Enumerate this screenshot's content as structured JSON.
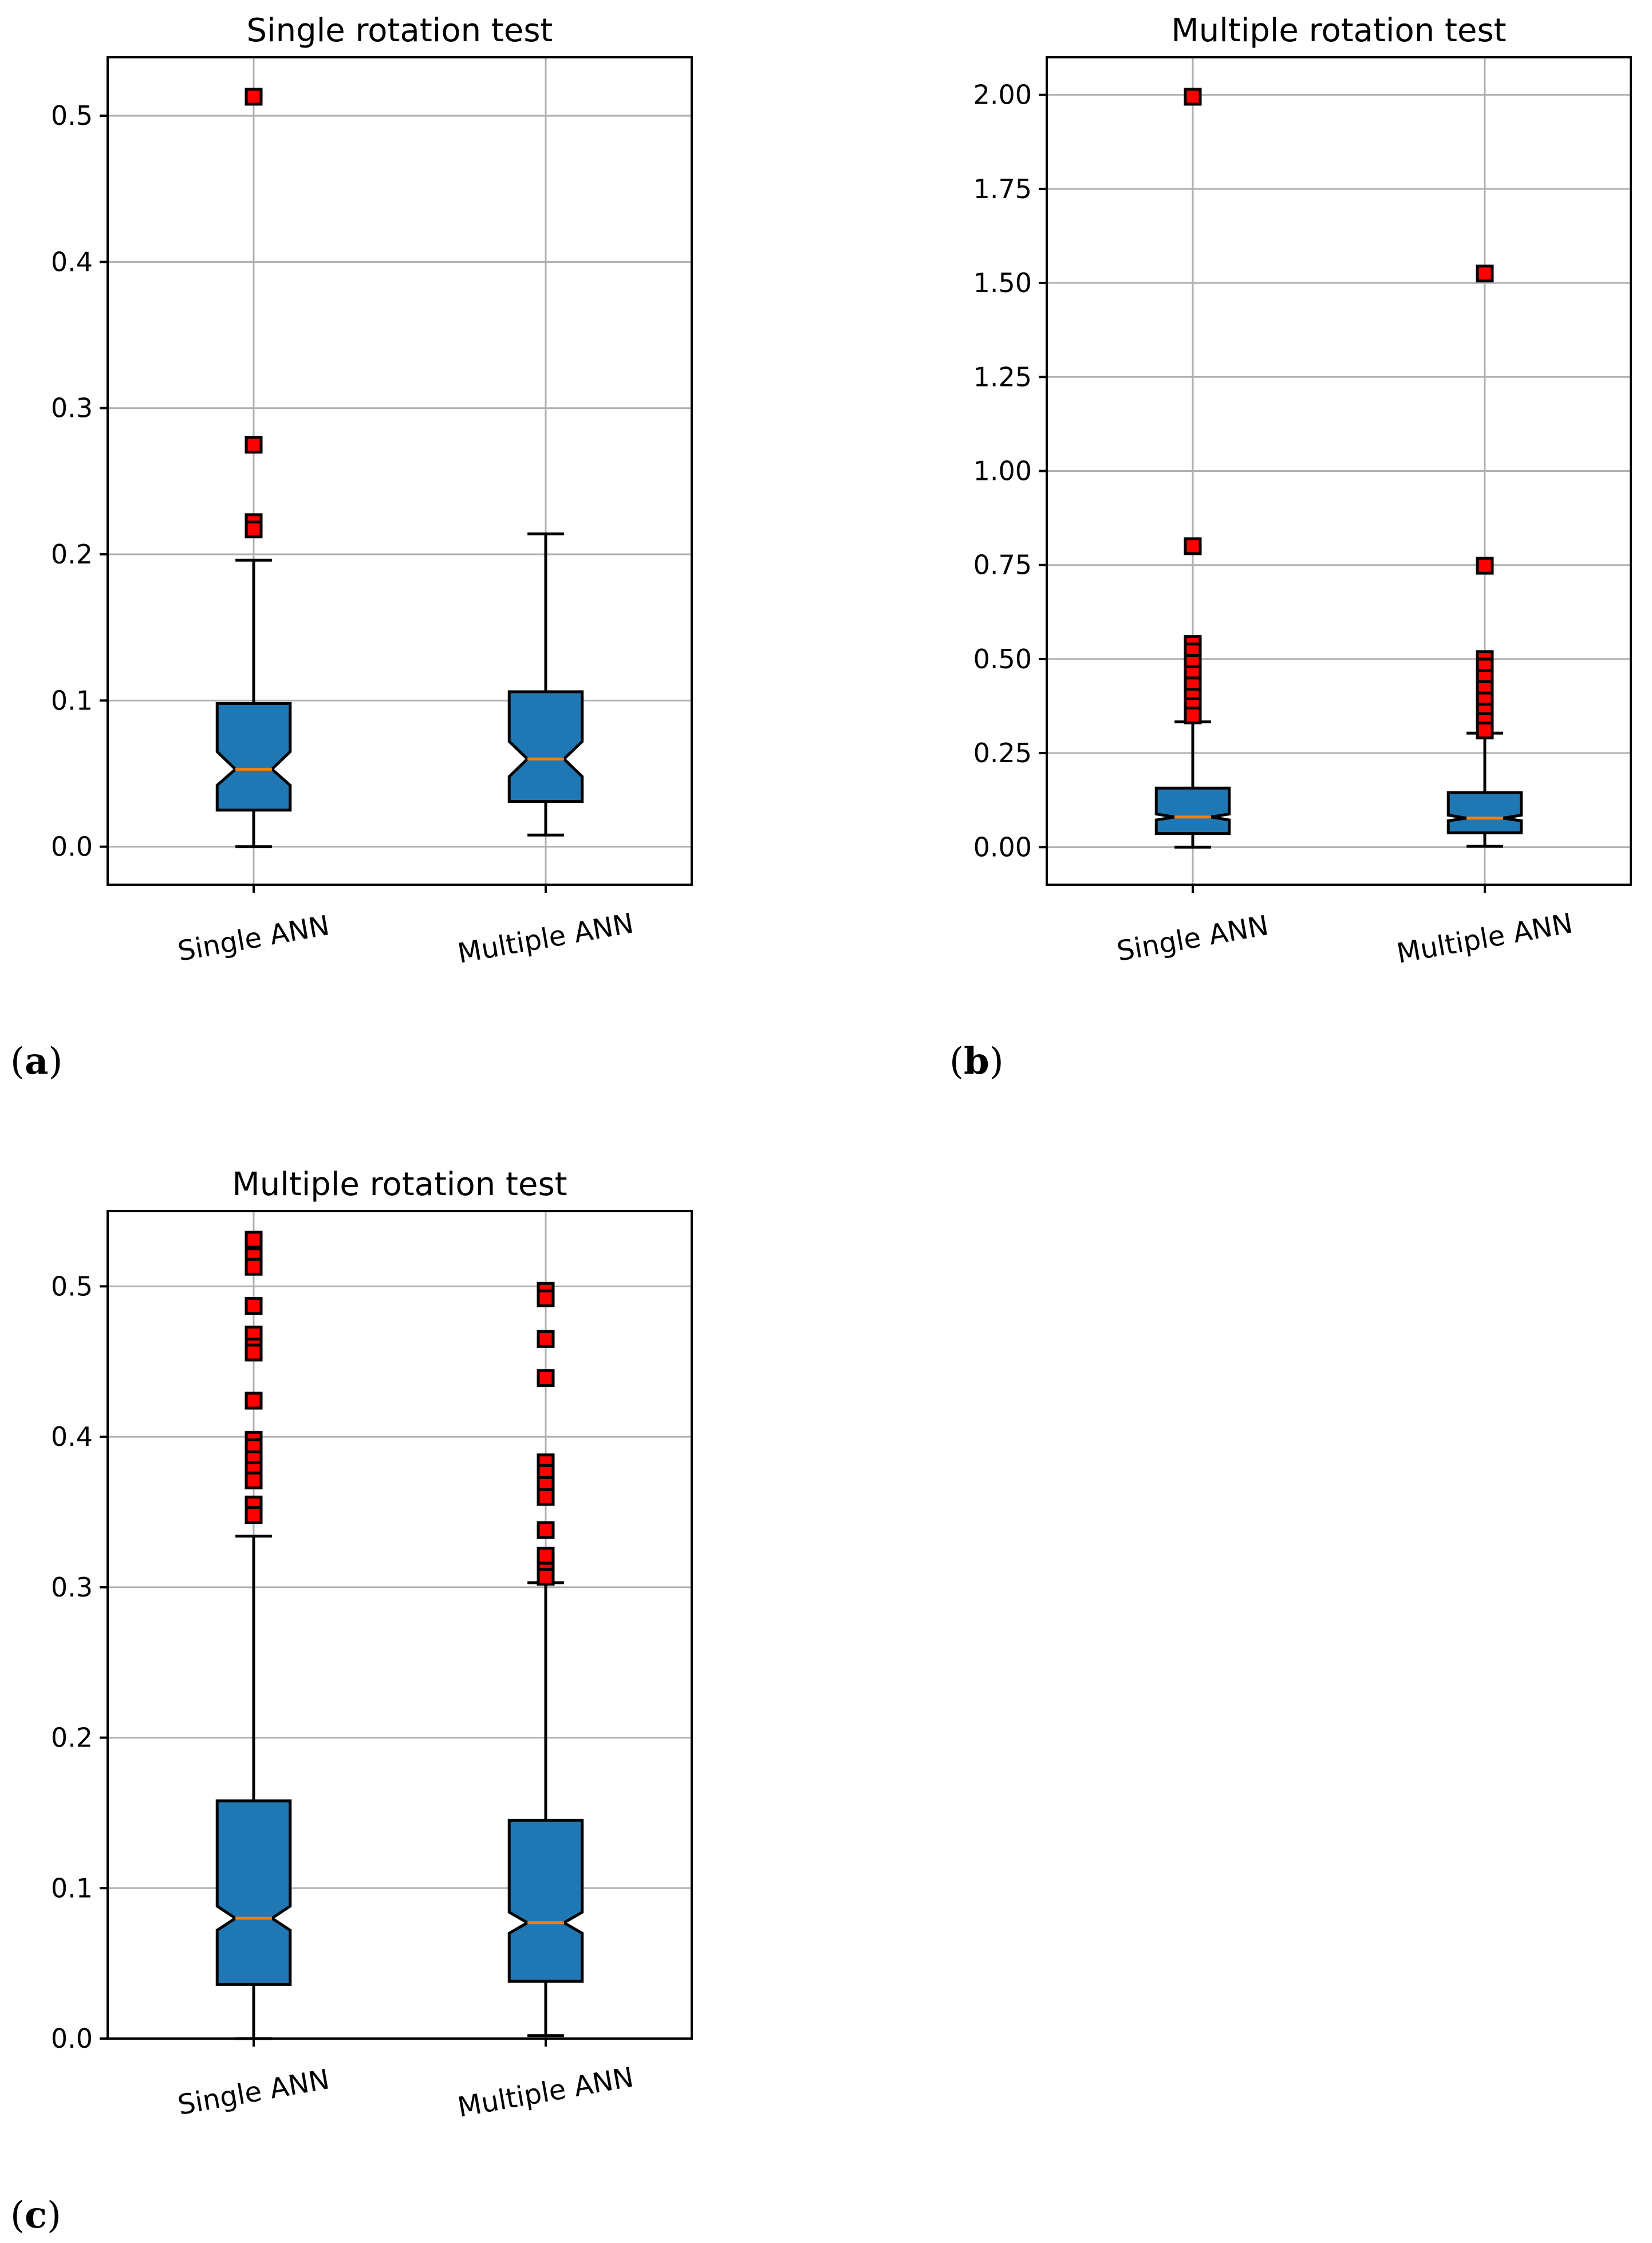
{
  "colors": {
    "box_fill": "#1f77b4",
    "median": "#ff7f0e",
    "flier_fill": "#ff0000",
    "grid": "#b0b0b0"
  },
  "chart_data": [
    {
      "panel": "a",
      "type": "boxplot",
      "title": "Single rotation test",
      "categories": [
        "Single ANN",
        "Multiple ANN"
      ],
      "ylim": [
        -0.026,
        0.54
      ],
      "yticks": [
        0.0,
        0.1,
        0.2,
        0.3,
        0.4,
        0.5
      ],
      "ytick_labels": [
        "0.0",
        "0.1",
        "0.2",
        "0.3",
        "0.4",
        "0.5"
      ],
      "grid": true,
      "series": [
        {
          "name": "Single ANN",
          "whisker_low": 0.0,
          "q1": 0.025,
          "notch_low": 0.042,
          "median": 0.053,
          "notch_high": 0.065,
          "q3": 0.098,
          "whisker_high": 0.196,
          "fliers": [
            0.513,
            0.275,
            0.222,
            0.217
          ]
        },
        {
          "name": "Multiple ANN",
          "whisker_low": 0.008,
          "q1": 0.031,
          "notch_low": 0.048,
          "median": 0.06,
          "notch_high": 0.072,
          "q3": 0.106,
          "whisker_high": 0.214,
          "fliers": []
        }
      ]
    },
    {
      "panel": "b",
      "type": "boxplot",
      "title": "Multiple rotation test",
      "categories": [
        "Single ANN",
        "Multiple ANN"
      ],
      "ylim": [
        -0.1,
        2.1
      ],
      "yticks": [
        0.0,
        0.25,
        0.5,
        0.75,
        1.0,
        1.25,
        1.5,
        1.75,
        2.0
      ],
      "ytick_labels": [
        "0.00",
        "0.25",
        "0.50",
        "0.75",
        "1.00",
        "1.25",
        "1.50",
        "1.75",
        "2.00"
      ],
      "grid": true,
      "series": [
        {
          "name": "Single ANN",
          "whisker_low": 0.0,
          "q1": 0.036,
          "notch_low": 0.072,
          "median": 0.08,
          "notch_high": 0.088,
          "q3": 0.157,
          "whisker_high": 0.333,
          "fliers": [
            1.995,
            0.8,
            0.54,
            0.52,
            0.49,
            0.46,
            0.43,
            0.4,
            0.375,
            0.35
          ]
        },
        {
          "name": "Multiple ANN",
          "whisker_low": 0.002,
          "q1": 0.038,
          "notch_low": 0.07,
          "median": 0.077,
          "notch_high": 0.085,
          "q3": 0.145,
          "whisker_high": 0.303,
          "fliers": [
            1.525,
            0.748,
            0.5,
            0.48,
            0.45,
            0.42,
            0.39,
            0.36,
            0.335,
            0.31
          ]
        }
      ]
    },
    {
      "panel": "c",
      "type": "boxplot",
      "title": "Multiple rotation test",
      "categories": [
        "Single ANN",
        "Multiple ANN"
      ],
      "ylim": [
        0.0,
        0.55
      ],
      "yticks": [
        0.0,
        0.1,
        0.2,
        0.3,
        0.4,
        0.5
      ],
      "ytick_labels": [
        "0.0",
        "0.1",
        "0.2",
        "0.3",
        "0.4",
        "0.5"
      ],
      "grid": true,
      "series": [
        {
          "name": "Single ANN",
          "whisker_low": 0.0,
          "q1": 0.036,
          "notch_low": 0.072,
          "median": 0.08,
          "notch_high": 0.088,
          "q3": 0.158,
          "whisker_high": 0.334,
          "fliers": [
            0.531,
            0.52,
            0.513,
            0.487,
            0.468,
            0.46,
            0.456,
            0.424,
            0.398,
            0.393,
            0.385,
            0.378,
            0.371,
            0.355,
            0.348
          ]
        },
        {
          "name": "Multiple ANN",
          "whisker_low": 0.002,
          "q1": 0.038,
          "notch_low": 0.07,
          "median": 0.077,
          "notch_high": 0.084,
          "q3": 0.145,
          "whisker_high": 0.303,
          "fliers": [
            0.497,
            0.492,
            0.465,
            0.439,
            0.383,
            0.376,
            0.368,
            0.36,
            0.338,
            0.321,
            0.311,
            0.307
          ]
        }
      ]
    }
  ],
  "panel_labels": [
    {
      "paren_open": "(",
      "letter": "a",
      "paren_close": ")"
    },
    {
      "paren_open": "(",
      "letter": "b",
      "paren_close": ")"
    },
    {
      "paren_open": "(",
      "letter": "c",
      "paren_close": ")"
    }
  ]
}
